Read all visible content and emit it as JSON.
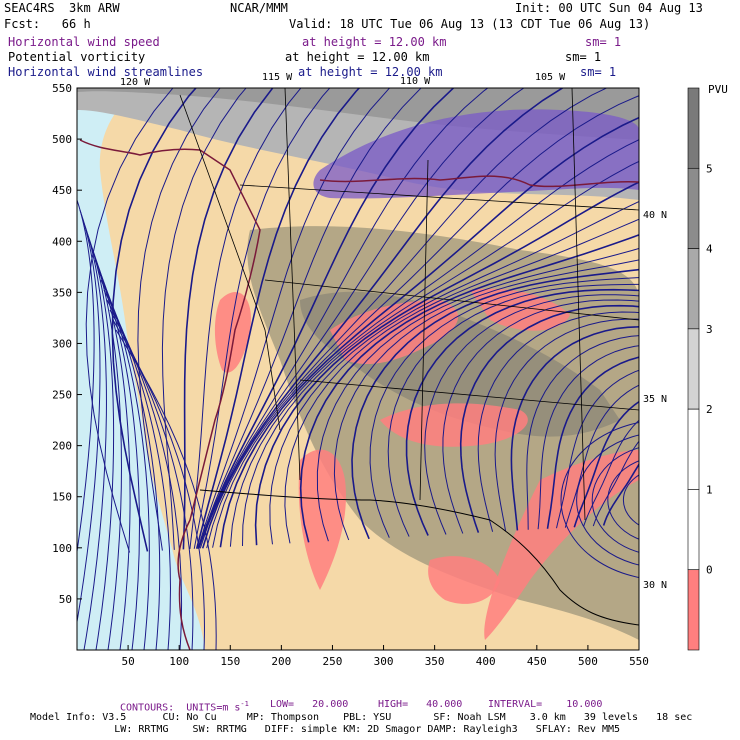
{
  "header": {
    "model": "SEAC4RS  3km ARW",
    "org": "NCAR/MMM",
    "init": "Init: 00 UTC Sun 04 Aug 13",
    "fcst": "Fcst:   66 h",
    "valid": "Valid: 18 UTC Tue 06 Aug 13 (13 CDT Tue 06 Aug 13)"
  },
  "fields": [
    {
      "name": "Horizontal wind speed",
      "height": "at height = 12.00 km",
      "sm": "sm= 1",
      "color": "#7a1a8a"
    },
    {
      "name": "Potential vorticity",
      "height": "at height = 12.00 km",
      "sm": "sm= 1",
      "color": "#000000"
    },
    {
      "name": "Horizontal wind streamlines",
      "height": "at height = 12.00 km",
      "sm": "sm= 1",
      "color": "#1a1a8a"
    }
  ],
  "axes": {
    "x_ticks": [
      "50",
      "100",
      "150",
      "200",
      "250",
      "300",
      "350",
      "400",
      "450",
      "500",
      "550"
    ],
    "y_ticks": [
      "50",
      "100",
      "150",
      "200",
      "250",
      "300",
      "350",
      "400",
      "450",
      "500",
      "550"
    ],
    "lon_labels": [
      "120 W",
      "115 W",
      "110 W",
      "105 W"
    ],
    "lat_labels": [
      "40 N",
      "35 N",
      "30 N"
    ]
  },
  "colorbar": {
    "unit": "PVU",
    "labels": [
      "0",
      "1",
      "2",
      "3",
      "4",
      "5"
    ],
    "colors": [
      "#ff7f7f",
      "#ffffff",
      "#ffffff",
      "#d3d3d3",
      "#a9a9a9",
      "#8c8c8c",
      "#7a7a7a"
    ]
  },
  "footer": {
    "contours": "CONTOURS:  UNITS=m s",
    "exp": "-1",
    "low": "LOW=   20.000",
    "high": "HIGH=   40.000",
    "interval": "INTERVAL=    10.000",
    "line1": "Model Info: V3.5      CU: No Cu     MP: Thompson    PBL: YSU       SF: Noah LSM    3.0 km   39 levels   18 sec",
    "line2": "              LW: RRTMG    SW: RRTMG   DIFF: simple KM: 2D Smagor DAMP: Rayleigh3   SFLAY: Rev MM5"
  }
}
